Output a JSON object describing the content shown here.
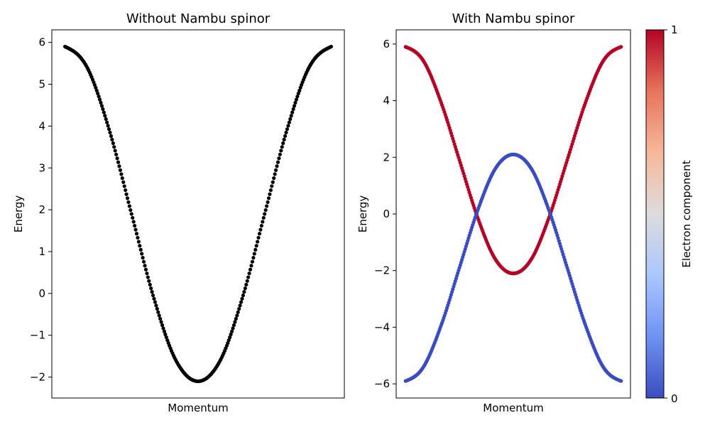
{
  "chart_data": [
    {
      "type": "scatter",
      "title": "Without Nambu spinor",
      "xlabel": "Momentum",
      "ylabel": "Energy",
      "xlim": [
        -3.1416,
        3.1416
      ],
      "ylim": [
        -2.5,
        6.3
      ],
      "xticks": [],
      "yticks": [
        -2,
        -1,
        0,
        1,
        2,
        3,
        4,
        5,
        6
      ],
      "ytick_labels": [
        "−2",
        "−1",
        "0",
        "1",
        "2",
        "3",
        "4",
        "5",
        "6"
      ],
      "grid": false,
      "series": [
        {
          "color": "#000000",
          "x": [
            -3.1416,
            -2.618,
            -2.0944,
            -1.5708,
            -1.0472,
            -0.5236,
            0,
            0.5236,
            1.0472,
            1.5708,
            2.0944,
            2.618,
            3.1416
          ],
          "y": [
            5.9,
            5.4,
            3.9,
            1.9,
            -0.1,
            -1.6,
            -2.1,
            -1.6,
            -0.1,
            1.9,
            3.9,
            5.4,
            5.9
          ]
        }
      ]
    },
    {
      "type": "scatter",
      "title": "With Nambu spinor",
      "xlabel": "Momentum",
      "ylabel": "Energy",
      "xlim": [
        -3.1416,
        3.1416
      ],
      "ylim": [
        -6.5,
        6.5
      ],
      "xticks": [],
      "yticks": [
        -6,
        -4,
        -2,
        0,
        2,
        4,
        6
      ],
      "ytick_labels": [
        "−6",
        "−4",
        "−2",
        "0",
        "2",
        "4",
        "6"
      ],
      "grid": false,
      "series": [
        {
          "electron_component": 1,
          "color": "#b40426",
          "x": [
            -3.1416,
            -2.618,
            -2.0944,
            -1.5708,
            -1.0472,
            -0.5236,
            0,
            0.5236,
            1.0472,
            1.5708,
            2.0944,
            2.618,
            3.1416
          ],
          "y": [
            5.9,
            5.4,
            3.9,
            1.9,
            -0.1,
            -1.6,
            -2.1,
            -1.6,
            -0.1,
            1.9,
            3.9,
            5.4,
            5.9
          ]
        },
        {
          "electron_component": 0,
          "color": "#3b4cc0",
          "x": [
            -3.1416,
            -2.618,
            -2.0944,
            -1.5708,
            -1.0472,
            -0.5236,
            0,
            0.5236,
            1.0472,
            1.5708,
            2.0944,
            2.618,
            3.1416
          ],
          "y": [
            -5.9,
            -5.4,
            -3.9,
            -1.9,
            0.1,
            1.6,
            2.1,
            1.6,
            0.1,
            -1.9,
            -3.9,
            -5.4,
            -5.9
          ]
        }
      ],
      "colorbar": {
        "label": "Electron component",
        "min": 0,
        "max": 1,
        "tick_labels": [
          "0",
          "1"
        ],
        "colormap": "coolwarm",
        "colors": [
          "#3b4cc0",
          "#6f92f3",
          "#aac7fd",
          "#dddcdc",
          "#f7b89c",
          "#e7745b",
          "#b40426"
        ]
      }
    }
  ]
}
